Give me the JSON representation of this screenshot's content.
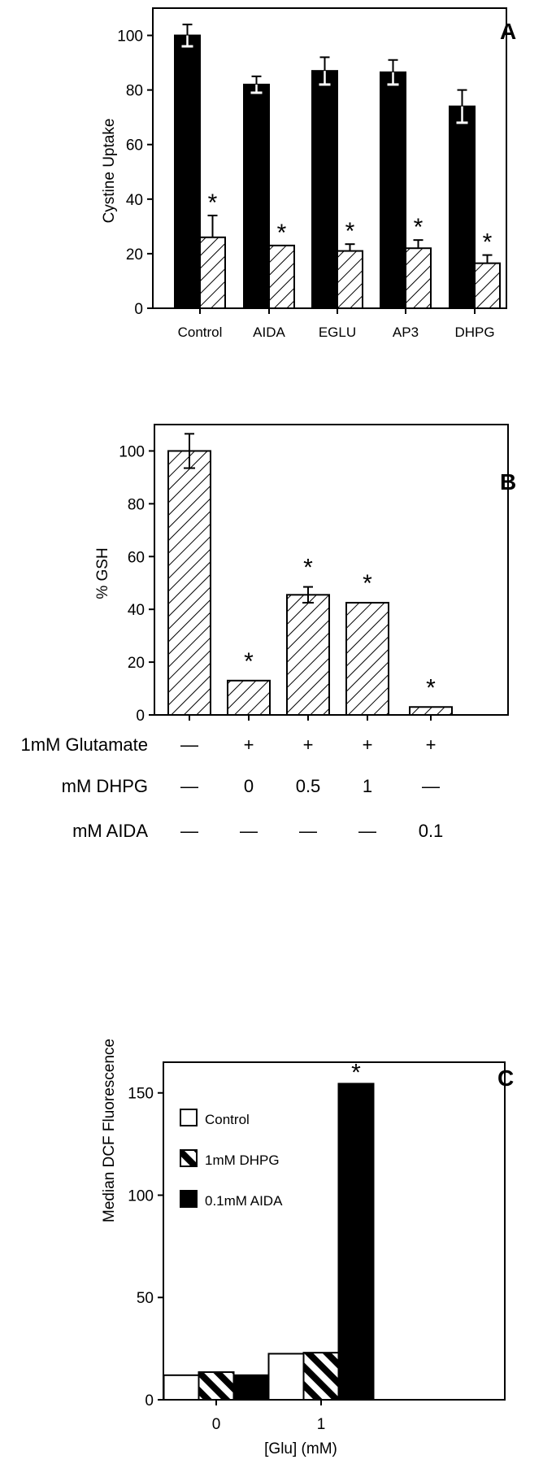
{
  "chart_data": [
    {
      "panel": "A",
      "type": "bar",
      "ylabel": "Cystine Uptake",
      "ylim": [
        0,
        110
      ],
      "yticks": [
        0,
        20,
        40,
        60,
        80,
        100
      ],
      "categories": [
        "Control",
        "AIDA",
        "EGLU",
        "AP3",
        "DHPG"
      ],
      "series": [
        {
          "style": "solid",
          "color": "#000000",
          "values": [
            100,
            82,
            87,
            86.5,
            74
          ],
          "errors": [
            4,
            3,
            5,
            4.5,
            6
          ]
        },
        {
          "style": "hatched",
          "color": "#000000",
          "values": [
            26,
            23,
            21,
            22,
            16.5
          ],
          "errors": [
            8,
            0,
            2.5,
            3,
            3
          ]
        }
      ],
      "significant_star": [
        false,
        true
      ],
      "star_symbol": "*"
    },
    {
      "panel": "B",
      "type": "bar",
      "ylabel": "% GSH",
      "ylim": [
        0,
        110
      ],
      "yticks": [
        0,
        20,
        40,
        60,
        80,
        100
      ],
      "series": [
        {
          "style": "hatched",
          "values": [
            100,
            13,
            45.5,
            42.5,
            3
          ],
          "errors": [
            6.5,
            0,
            3,
            0,
            0
          ],
          "stars": [
            false,
            true,
            true,
            true,
            true
          ]
        }
      ],
      "star_symbol": "*",
      "conditions": [
        {
          "label": "1mM Glutamate",
          "values": [
            "—",
            "+",
            "+",
            "+",
            "+"
          ]
        },
        {
          "label": "mM DHPG",
          "values": [
            "—",
            "0",
            "0.5",
            "1",
            "—"
          ]
        },
        {
          "label": "mM AIDA",
          "values": [
            "—",
            "—",
            "—",
            "—",
            "0.1"
          ]
        }
      ]
    },
    {
      "panel": "C",
      "type": "bar",
      "ylabel": "Median DCF Fluorescence",
      "xlabel": "[Glu] (mM)",
      "ylim": [
        0,
        165
      ],
      "yticks": [
        0,
        50,
        100,
        150
      ],
      "categories": [
        "0",
        "1"
      ],
      "series": [
        {
          "name": "Control",
          "style": "open",
          "values": [
            12,
            22.5
          ]
        },
        {
          "name": "1mM DHPG",
          "style": "hatched",
          "values": [
            13.5,
            23
          ]
        },
        {
          "name": "0.1mM AIDA",
          "style": "solid",
          "values": [
            12,
            154.5
          ]
        }
      ],
      "star_symbol": "*",
      "star_on": {
        "category": 1,
        "series": 2
      },
      "legend_position": "left"
    }
  ]
}
